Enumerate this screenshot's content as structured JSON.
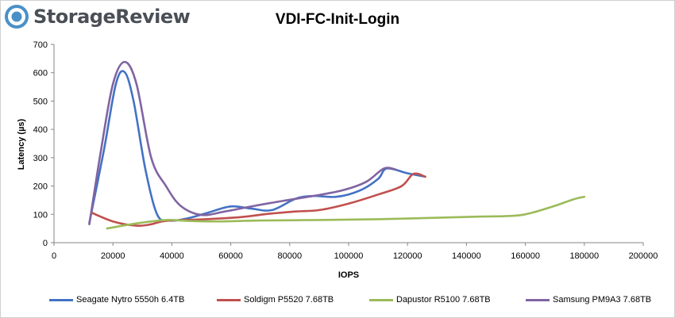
{
  "brand": {
    "name": "StorageReview",
    "logo_color": "#4a90c8"
  },
  "chart_data": {
    "type": "line",
    "title": "VDI-FC-Init-Login",
    "xlabel": "IOPS",
    "ylabel": "Latency (µs)",
    "xlim": [
      0,
      200000
    ],
    "ylim": [
      0,
      700
    ],
    "xticks": [
      0,
      20000,
      40000,
      60000,
      80000,
      100000,
      120000,
      140000,
      160000,
      180000,
      200000
    ],
    "yticks": [
      0,
      100,
      200,
      300,
      400,
      500,
      600,
      700
    ],
    "grid": false,
    "legend_position": "bottom",
    "series": [
      {
        "name": "Seagate Nytro 5550h 6.4TB",
        "color": "#4472c4",
        "points": [
          [
            12000,
            70
          ],
          [
            17000,
            330
          ],
          [
            21000,
            560
          ],
          [
            24000,
            602
          ],
          [
            27000,
            500
          ],
          [
            31000,
            260
          ],
          [
            35000,
            100
          ],
          [
            39000,
            78
          ],
          [
            45000,
            85
          ],
          [
            52000,
            105
          ],
          [
            60000,
            128
          ],
          [
            67000,
            120
          ],
          [
            74000,
            115
          ],
          [
            82000,
            155
          ],
          [
            88000,
            165
          ],
          [
            96000,
            162
          ],
          [
            104000,
            185
          ],
          [
            110000,
            225
          ],
          [
            113000,
            262
          ],
          [
            120000,
            245
          ],
          [
            126000,
            233
          ]
        ]
      },
      {
        "name": "Soldigm P5520 7.68TB",
        "color": "#c0504d",
        "points": [
          [
            13000,
            105
          ],
          [
            20000,
            75
          ],
          [
            28000,
            60
          ],
          [
            33000,
            65
          ],
          [
            38000,
            77
          ],
          [
            50000,
            82
          ],
          [
            63000,
            90
          ],
          [
            73000,
            102
          ],
          [
            82000,
            110
          ],
          [
            90000,
            115
          ],
          [
            100000,
            138
          ],
          [
            110000,
            170
          ],
          [
            118000,
            200
          ],
          [
            122000,
            243
          ],
          [
            126000,
            233
          ]
        ]
      },
      {
        "name": "Dapustor R5100 7.68TB",
        "color": "#9bbb59",
        "points": [
          [
            18000,
            50
          ],
          [
            28000,
            68
          ],
          [
            38000,
            80
          ],
          [
            45000,
            77
          ],
          [
            55000,
            75
          ],
          [
            70000,
            78
          ],
          [
            90000,
            80
          ],
          [
            110000,
            83
          ],
          [
            130000,
            88
          ],
          [
            145000,
            92
          ],
          [
            156000,
            95
          ],
          [
            162000,
            105
          ],
          [
            170000,
            130
          ],
          [
            176000,
            152
          ],
          [
            180000,
            162
          ]
        ]
      },
      {
        "name": "Samsung PM9A3 7.68TB",
        "color": "#8064a2",
        "points": [
          [
            12000,
            65
          ],
          [
            16000,
            330
          ],
          [
            20000,
            560
          ],
          [
            24000,
            638
          ],
          [
            28000,
            560
          ],
          [
            33000,
            300
          ],
          [
            38000,
            200
          ],
          [
            43000,
            130
          ],
          [
            50000,
            98
          ],
          [
            58000,
            110
          ],
          [
            68000,
            130
          ],
          [
            78000,
            148
          ],
          [
            88000,
            165
          ],
          [
            98000,
            185
          ],
          [
            106000,
            215
          ],
          [
            112000,
            262
          ],
          [
            116000,
            258
          ]
        ]
      }
    ]
  }
}
